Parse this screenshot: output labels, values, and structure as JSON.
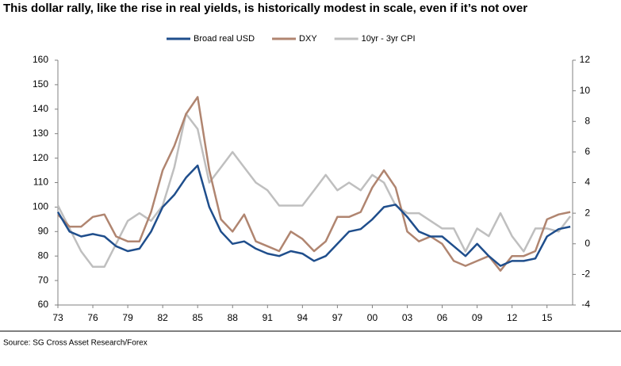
{
  "chart_data": {
    "type": "line",
    "title": "This dollar rally, like the rise in real yields, is historically modest in scale, even if it’s not over",
    "source": "Source: SG Cross Asset Research/Forex",
    "x": [
      1973,
      1974,
      1975,
      1976,
      1977,
      1978,
      1979,
      1980,
      1981,
      1982,
      1983,
      1984,
      1985,
      1986,
      1987,
      1988,
      1989,
      1990,
      1991,
      1992,
      1993,
      1994,
      1995,
      1996,
      1997,
      1998,
      1999,
      2000,
      2001,
      2002,
      2003,
      2004,
      2005,
      2006,
      2007,
      2008,
      2009,
      2010,
      2011,
      2012,
      2013,
      2014,
      2015,
      2016,
      2017
    ],
    "series": [
      {
        "name": "Broad real USD",
        "color": "#1f4e8c",
        "values": [
          98,
          90,
          88,
          89,
          88,
          84,
          82,
          83,
          90,
          100,
          105,
          112,
          117,
          100,
          90,
          85,
          86,
          83,
          81,
          80,
          82,
          81,
          78,
          80,
          85,
          90,
          91,
          95,
          100,
          101,
          96,
          90,
          88,
          88,
          84,
          80,
          85,
          80,
          76,
          78,
          78,
          79,
          88,
          91,
          92
        ]
      },
      {
        "name": "DXY",
        "color": "#b08570",
        "values": [
          97,
          92,
          92,
          96,
          97,
          88,
          86,
          86,
          98,
          115,
          125,
          138,
          145,
          115,
          95,
          90,
          97,
          86,
          84,
          82,
          90,
          87,
          82,
          86,
          96,
          96,
          98,
          108,
          115,
          108,
          90,
          86,
          88,
          85,
          78,
          76,
          78,
          80,
          74,
          80,
          80,
          82,
          95,
          97,
          98
        ]
      },
      {
        "name": "10yr - 3yr CPI",
        "color": "#bfbfbf",
        "axis": "y2",
        "values": [
          2.5,
          1.0,
          -0.5,
          -1.5,
          -1.5,
          0,
          1.5,
          2.0,
          1.5,
          2.5,
          5,
          8.5,
          7.5,
          4,
          5,
          6,
          5,
          4,
          3.5,
          2.5,
          2.5,
          2.5,
          3.5,
          4.5,
          3.5,
          4,
          3.5,
          4.5,
          4,
          2.5,
          2,
          2,
          1.5,
          1,
          1,
          -0.5,
          1,
          0.5,
          2,
          0.5,
          -0.5,
          1,
          1,
          0.8,
          1.8
        ]
      }
    ],
    "xlim": [
      1973,
      2017.2
    ],
    "xticks": [
      {
        "value": 1973,
        "label": "73"
      },
      {
        "value": 1976,
        "label": "76"
      },
      {
        "value": 1979,
        "label": "79"
      },
      {
        "value": 1982,
        "label": "82"
      },
      {
        "value": 1985,
        "label": "85"
      },
      {
        "value": 1988,
        "label": "88"
      },
      {
        "value": 1991,
        "label": "91"
      },
      {
        "value": 1994,
        "label": "94"
      },
      {
        "value": 1997,
        "label": "97"
      },
      {
        "value": 2000,
        "label": "00"
      },
      {
        "value": 2003,
        "label": "03"
      },
      {
        "value": 2006,
        "label": "06"
      },
      {
        "value": 2009,
        "label": "09"
      },
      {
        "value": 2012,
        "label": "12"
      },
      {
        "value": 2015,
        "label": "15"
      }
    ],
    "ylim": [
      60,
      160
    ],
    "yticks": [
      60,
      70,
      80,
      90,
      100,
      110,
      120,
      130,
      140,
      150,
      160
    ],
    "y2lim": [
      -4,
      12
    ],
    "y2ticks": [
      -4,
      -2,
      0,
      2,
      4,
      6,
      8,
      10,
      12
    ],
    "grid": false
  }
}
